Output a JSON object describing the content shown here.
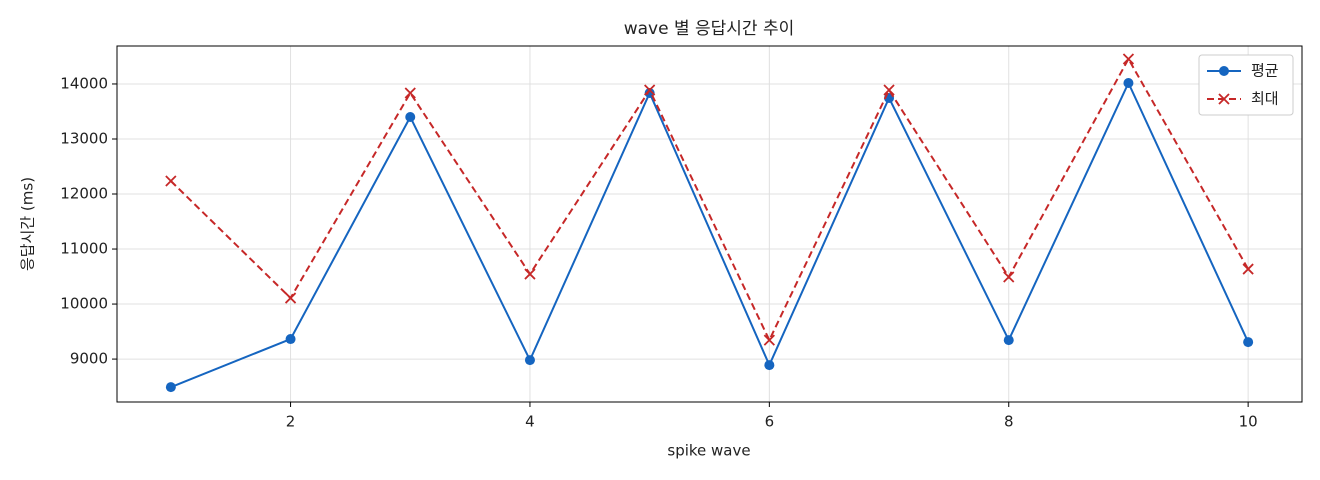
{
  "chart_data": {
    "type": "line",
    "title": "wave 별 응답시간 추이",
    "xlabel": "spike wave",
    "ylabel": "응답시간 (ms)",
    "x": [
      1,
      2,
      3,
      4,
      5,
      6,
      7,
      8,
      9,
      10
    ],
    "series": [
      {
        "name": "평균",
        "color": "#1565c0",
        "marker": "circle",
        "dashed": false,
        "values": [
          8490,
          9364,
          13400,
          8982,
          13836,
          8891,
          13745,
          9345,
          14018,
          9309
        ]
      },
      {
        "name": "최대",
        "color": "#c62828",
        "marker": "x",
        "dashed": true,
        "values": [
          12236,
          10109,
          13836,
          10545,
          13890,
          9345,
          13890,
          10491,
          14454,
          10636
        ]
      }
    ],
    "xlim": [
      0.55,
      10.45
    ],
    "xticks": [
      2,
      4,
      6,
      8,
      10
    ],
    "ylim": [
      8220,
      14690
    ],
    "yticks": [
      9000,
      10000,
      11000,
      12000,
      13000,
      14000
    ],
    "grid": true,
    "legend": "upper-right"
  }
}
